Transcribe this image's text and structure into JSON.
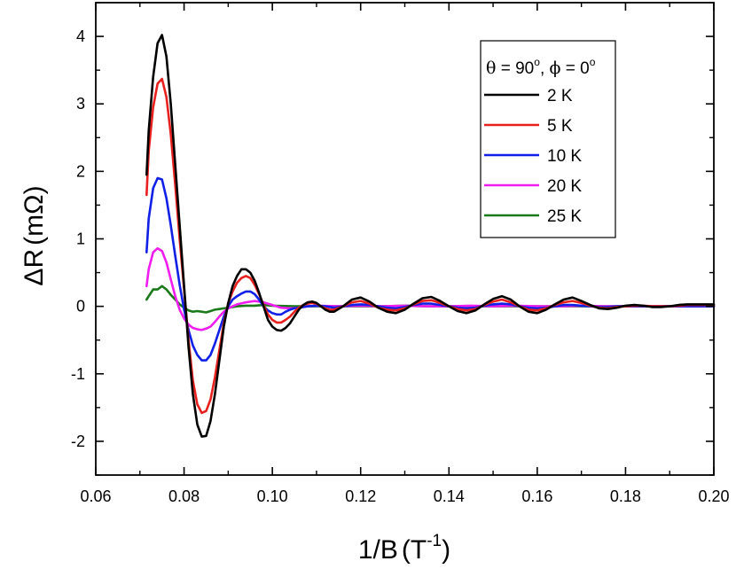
{
  "chart_data": {
    "type": "line",
    "xlabel": {
      "main": "1/B",
      "unit_open": "(T",
      "unit_exp": "-1",
      "unit_close": ")"
    },
    "ylabel": {
      "main": "ΔR",
      "unit": "(mΩ)"
    },
    "xlim": [
      0.06,
      0.2
    ],
    "ylim": [
      -2.5,
      4.5
    ],
    "xticks": [
      "0.06",
      "0.08",
      "0.10",
      "0.12",
      "0.14",
      "0.16",
      "0.18",
      "0.20"
    ],
    "yticks": [
      "-2",
      "-1",
      "0",
      "1",
      "2",
      "3",
      "4"
    ],
    "grid": false,
    "legend": {
      "position": "top-right",
      "title": {
        "theta": "θ",
        "theta_eq": " = 90",
        "sep": ", ",
        "phi": "ϕ",
        "phi_eq": " = 0",
        "deg": "o"
      }
    },
    "series": [
      {
        "name": "2 K",
        "color": "#000000",
        "x": [
          0.0715,
          0.072,
          0.073,
          0.074,
          0.075,
          0.076,
          0.077,
          0.078,
          0.079,
          0.08,
          0.081,
          0.082,
          0.083,
          0.084,
          0.085,
          0.086,
          0.087,
          0.088,
          0.089,
          0.09,
          0.091,
          0.092,
          0.093,
          0.094,
          0.095,
          0.096,
          0.097,
          0.098,
          0.099,
          0.1,
          0.101,
          0.102,
          0.103,
          0.104,
          0.105,
          0.106,
          0.107,
          0.108,
          0.109,
          0.11,
          0.111,
          0.112,
          0.113,
          0.114,
          0.116,
          0.118,
          0.12,
          0.122,
          0.124,
          0.126,
          0.128,
          0.13,
          0.132,
          0.134,
          0.136,
          0.138,
          0.14,
          0.142,
          0.144,
          0.146,
          0.148,
          0.15,
          0.152,
          0.154,
          0.156,
          0.158,
          0.16,
          0.162,
          0.164,
          0.166,
          0.168,
          0.17,
          0.172,
          0.174,
          0.176,
          0.178,
          0.18,
          0.182,
          0.184,
          0.186,
          0.188,
          0.19,
          0.192,
          0.194,
          0.196,
          0.198,
          0.2
        ],
        "y": [
          1.95,
          2.6,
          3.4,
          3.9,
          4.02,
          3.7,
          3.0,
          2.1,
          1.2,
          0.3,
          -0.6,
          -1.3,
          -1.75,
          -1.93,
          -1.92,
          -1.7,
          -1.3,
          -0.8,
          -0.3,
          0.05,
          0.3,
          0.45,
          0.55,
          0.55,
          0.5,
          0.38,
          0.2,
          0.0,
          -0.2,
          -0.3,
          -0.35,
          -0.36,
          -0.32,
          -0.25,
          -0.15,
          -0.05,
          0.02,
          0.06,
          0.07,
          0.05,
          0.0,
          -0.05,
          -0.08,
          -0.08,
          0.0,
          0.1,
          0.13,
          0.07,
          -0.02,
          -0.08,
          -0.1,
          -0.05,
          0.04,
          0.12,
          0.14,
          0.08,
          0.0,
          -0.07,
          -0.1,
          -0.06,
          0.03,
          0.11,
          0.15,
          0.1,
          0.0,
          -0.08,
          -0.1,
          -0.05,
          0.03,
          0.1,
          0.13,
          0.08,
          0.02,
          -0.03,
          -0.04,
          -0.02,
          0.01,
          0.02,
          0.01,
          -0.01,
          -0.01,
          0.0,
          0.02,
          0.03,
          0.03,
          0.03,
          0.03
        ]
      },
      {
        "name": "5 K",
        "color": "#e8201e",
        "x": [
          0.0715,
          0.072,
          0.073,
          0.074,
          0.075,
          0.076,
          0.077,
          0.078,
          0.079,
          0.08,
          0.081,
          0.082,
          0.083,
          0.084,
          0.085,
          0.086,
          0.087,
          0.088,
          0.089,
          0.09,
          0.091,
          0.092,
          0.093,
          0.094,
          0.095,
          0.096,
          0.097,
          0.098,
          0.099,
          0.1,
          0.101,
          0.102,
          0.103,
          0.104,
          0.105,
          0.106,
          0.107,
          0.108,
          0.109,
          0.11,
          0.111,
          0.112,
          0.113,
          0.114,
          0.116,
          0.118,
          0.12,
          0.122,
          0.124,
          0.126,
          0.128,
          0.13,
          0.132,
          0.134,
          0.136,
          0.138,
          0.14,
          0.142,
          0.144,
          0.146,
          0.148,
          0.15,
          0.152,
          0.154,
          0.156,
          0.158,
          0.16,
          0.162,
          0.164,
          0.166,
          0.168,
          0.17,
          0.172,
          0.174,
          0.176,
          0.178,
          0.18,
          0.182,
          0.184,
          0.186,
          0.188,
          0.19,
          0.192,
          0.194,
          0.196,
          0.198,
          0.2
        ],
        "y": [
          1.65,
          2.3,
          2.95,
          3.3,
          3.37,
          3.1,
          2.55,
          1.8,
          1.0,
          0.25,
          -0.5,
          -1.1,
          -1.45,
          -1.58,
          -1.55,
          -1.38,
          -1.05,
          -0.65,
          -0.25,
          0.05,
          0.22,
          0.35,
          0.42,
          0.45,
          0.42,
          0.32,
          0.18,
          0.02,
          -0.12,
          -0.2,
          -0.24,
          -0.24,
          -0.2,
          -0.15,
          -0.08,
          -0.02,
          0.02,
          0.04,
          0.05,
          0.04,
          0.0,
          -0.03,
          -0.05,
          -0.05,
          0.0,
          0.06,
          0.08,
          0.04,
          -0.02,
          -0.05,
          -0.06,
          -0.03,
          0.03,
          0.08,
          0.09,
          0.05,
          0.0,
          -0.04,
          -0.06,
          -0.04,
          0.02,
          0.07,
          0.1,
          0.06,
          0.0,
          -0.05,
          -0.06,
          -0.03,
          0.02,
          0.06,
          0.08,
          0.05,
          0.01,
          -0.02,
          -0.03,
          -0.01,
          0.0,
          0.01,
          0.01,
          0.0,
          0.0,
          0.0,
          0.01,
          0.02,
          0.02,
          0.02,
          0.02
        ]
      },
      {
        "name": "10 K",
        "color": "#1020e6",
        "x": [
          0.0715,
          0.072,
          0.073,
          0.074,
          0.075,
          0.076,
          0.077,
          0.078,
          0.079,
          0.08,
          0.081,
          0.082,
          0.083,
          0.084,
          0.085,
          0.086,
          0.087,
          0.088,
          0.089,
          0.09,
          0.091,
          0.092,
          0.093,
          0.094,
          0.095,
          0.096,
          0.097,
          0.098,
          0.099,
          0.1,
          0.101,
          0.102,
          0.103,
          0.104,
          0.105,
          0.106,
          0.107,
          0.108,
          0.11,
          0.112,
          0.114,
          0.116,
          0.118,
          0.12,
          0.122,
          0.124,
          0.126,
          0.128,
          0.13,
          0.132,
          0.134,
          0.136,
          0.138,
          0.14,
          0.142,
          0.144,
          0.146,
          0.148,
          0.15,
          0.152,
          0.154,
          0.156,
          0.158,
          0.16,
          0.162,
          0.164,
          0.166,
          0.168,
          0.17,
          0.172,
          0.174,
          0.176,
          0.178,
          0.18,
          0.182,
          0.184,
          0.186,
          0.188,
          0.19,
          0.192,
          0.194,
          0.196,
          0.198,
          0.2
        ],
        "y": [
          0.8,
          1.3,
          1.75,
          1.9,
          1.88,
          1.6,
          1.2,
          0.75,
          0.32,
          -0.05,
          -0.35,
          -0.58,
          -0.72,
          -0.8,
          -0.8,
          -0.72,
          -0.55,
          -0.35,
          -0.15,
          0.0,
          0.1,
          0.15,
          0.19,
          0.22,
          0.22,
          0.18,
          0.1,
          0.0,
          -0.06,
          -0.1,
          -0.12,
          -0.12,
          -0.08,
          -0.05,
          -0.03,
          -0.02,
          -0.01,
          0.0,
          0.01,
          0.0,
          -0.02,
          0.0,
          0.02,
          0.03,
          0.02,
          0.0,
          -0.02,
          -0.03,
          -0.01,
          0.02,
          0.04,
          0.04,
          0.02,
          0.0,
          -0.02,
          -0.03,
          -0.02,
          0.01,
          0.03,
          0.04,
          0.03,
          0.0,
          -0.02,
          -0.03,
          -0.02,
          0.0,
          0.02,
          0.02,
          0.01,
          0.0,
          -0.01,
          -0.01,
          0.0,
          0.0,
          0.0,
          0.0,
          0.0,
          0.0,
          0.0,
          0.0,
          0.0,
          0.0,
          0.0,
          0.0
        ]
      },
      {
        "name": "20 K",
        "color": "#f01cf0",
        "x": [
          0.0715,
          0.072,
          0.073,
          0.074,
          0.075,
          0.076,
          0.077,
          0.078,
          0.079,
          0.08,
          0.081,
          0.082,
          0.083,
          0.084,
          0.085,
          0.086,
          0.087,
          0.088,
          0.089,
          0.09,
          0.091,
          0.092,
          0.094,
          0.096,
          0.098,
          0.1,
          0.102,
          0.104,
          0.106,
          0.108,
          0.11,
          0.115,
          0.12,
          0.125,
          0.13,
          0.135,
          0.14,
          0.145,
          0.15,
          0.155,
          0.16,
          0.165,
          0.17,
          0.175,
          0.18,
          0.185,
          0.19,
          0.195,
          0.2
        ],
        "y": [
          0.3,
          0.55,
          0.8,
          0.86,
          0.82,
          0.65,
          0.4,
          0.15,
          -0.05,
          -0.18,
          -0.27,
          -0.32,
          -0.34,
          -0.35,
          -0.33,
          -0.3,
          -0.23,
          -0.15,
          -0.08,
          -0.03,
          0.0,
          0.03,
          0.06,
          0.08,
          0.06,
          0.02,
          -0.02,
          -0.03,
          -0.02,
          0.0,
          0.01,
          0.0,
          0.01,
          0.0,
          0.01,
          0.0,
          0.0,
          0.01,
          0.0,
          0.01,
          0.0,
          0.0,
          0.01,
          0.0,
          0.0,
          0.0,
          0.0,
          0.0,
          0.0
        ]
      },
      {
        "name": "25 K",
        "color": "#1a7a1a",
        "x": [
          0.0715,
          0.072,
          0.073,
          0.074,
          0.075,
          0.076,
          0.077,
          0.078,
          0.079,
          0.08,
          0.081,
          0.082,
          0.083,
          0.084,
          0.085,
          0.086,
          0.087,
          0.088,
          0.089,
          0.09,
          0.092,
          0.094,
          0.096,
          0.098,
          0.1,
          0.105,
          0.11,
          0.115,
          0.12,
          0.125,
          0.13,
          0.135,
          0.14,
          0.145,
          0.15,
          0.155,
          0.16,
          0.165,
          0.17,
          0.175,
          0.18,
          0.185,
          0.19,
          0.195,
          0.2
        ],
        "y": [
          0.1,
          0.15,
          0.25,
          0.25,
          0.3,
          0.25,
          0.17,
          0.1,
          0.03,
          -0.02,
          -0.06,
          -0.08,
          -0.07,
          -0.08,
          -0.09,
          -0.07,
          -0.05,
          -0.04,
          -0.03,
          -0.02,
          0.0,
          0.01,
          0.01,
          0.02,
          0.01,
          0.0,
          0.0,
          0.0,
          0.0,
          0.0,
          0.01,
          0.0,
          0.0,
          0.0,
          0.0,
          0.0,
          0.0,
          0.0,
          0.0,
          0.0,
          0.0,
          0.0,
          0.0,
          0.0,
          0.0
        ]
      }
    ]
  }
}
